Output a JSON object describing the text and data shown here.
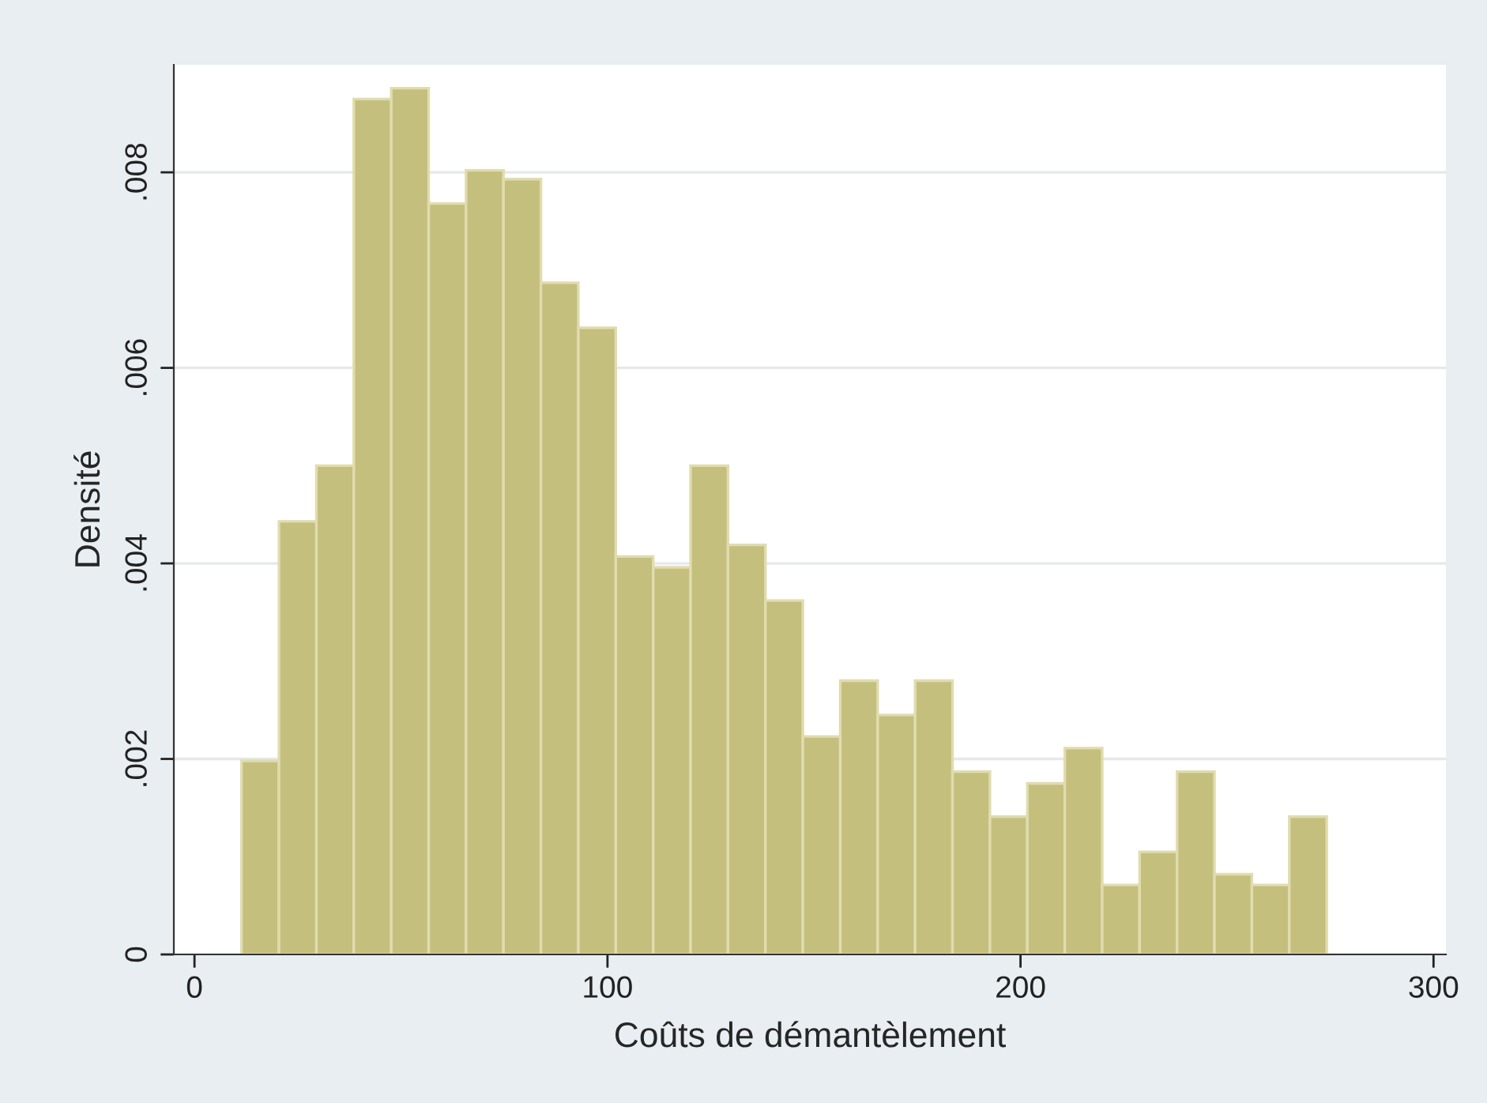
{
  "chart_data": {
    "type": "histogram",
    "xlabel": "Coûts de démantèlement",
    "ylabel": "Densité",
    "bins": [
      11.4,
      20.46,
      29.52,
      38.58,
      47.64,
      56.7,
      65.76,
      74.82,
      83.88,
      92.94,
      102.0,
      111.06,
      120.12,
      129.18,
      138.24,
      147.3,
      156.36,
      165.42,
      174.48,
      183.54,
      192.6,
      201.66,
      210.72,
      219.78,
      228.84,
      237.9,
      246.96,
      256.02,
      265.08,
      274.14
    ],
    "values": [
      0.00198,
      0.00443,
      0.005,
      0.00875,
      0.00886,
      0.00768,
      0.00802,
      0.00793,
      0.00687,
      0.00641,
      0.00407,
      0.00396,
      0.005,
      0.00419,
      0.00362,
      0.00223,
      0.0028,
      0.00245,
      0.0028,
      0.00187,
      0.00141,
      0.00175,
      0.00211,
      0.00071,
      0.00105,
      0.00187,
      0.00082,
      0.00071,
      0.00141
    ],
    "color": "#c5bf7e",
    "xlim": [
      -5,
      303
    ],
    "xticks": [
      0,
      100,
      200,
      300
    ],
    "ylim": [
      0,
      0.0091
    ],
    "yticks": [
      {
        "value": 0,
        "label": "0"
      },
      {
        "value": 0.002,
        "label": ".002"
      },
      {
        "value": 0.004,
        "label": ".004"
      },
      {
        "value": 0.006,
        "label": ".006"
      },
      {
        "value": 0.008,
        "label": ".008"
      }
    ],
    "grid": "y"
  }
}
